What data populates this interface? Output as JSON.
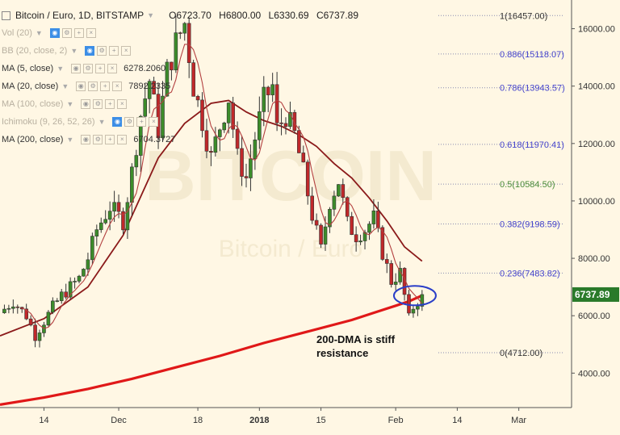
{
  "header": {
    "symbol": "Bitcoin / Euro, 1D, BITSTAMP",
    "ohlc": [
      "O6723.70",
      "H6800.00",
      "L6330.69",
      "C6737.89"
    ]
  },
  "indicators": [
    {
      "name": "Vol (20)",
      "value": "",
      "dim": true,
      "blue": true
    },
    {
      "name": "BB (20, close, 2)",
      "value": "",
      "dim": true,
      "blue": true
    },
    {
      "name": "MA (5, close)",
      "value": "6278.2060",
      "dim": false,
      "blue": false
    },
    {
      "name": "MA (20, close)",
      "value": "7892.2335",
      "dim": false,
      "blue": false
    },
    {
      "name": "MA (100, close)",
      "value": "",
      "dim": true,
      "blue": false
    },
    {
      "name": "Ichimoku (9, 26, 52, 26)",
      "value": "",
      "dim": true,
      "blue": true
    },
    {
      "name": "MA (200, close)",
      "value": "6704.3727",
      "dim": false,
      "blue": false
    }
  ],
  "watermark": {
    "line1": "BITCOIN",
    "line2": "Bitcoin / Euro"
  },
  "annotation": {
    "line1": "200-DMA is stiff",
    "line2": "resistance"
  },
  "colors": {
    "up": "#3c8c2a",
    "down": "#c0282a",
    "ma5": "#b34040",
    "ma20": "#8b1a1a",
    "ma200": "#e01818",
    "fib": "#4444cc",
    "fib_mid": "#4a8c3a",
    "ellipse": "#2a3ec8",
    "price_tag": "#2a7a2a"
  },
  "chart_data": {
    "type": "candlestick",
    "title": "Bitcoin / Euro, 1D, BITSTAMP",
    "ylim": [
      2800,
      17000
    ],
    "y_ticks": [
      4000,
      6000,
      8000,
      10000,
      12000,
      14000,
      16000
    ],
    "y_tick_labels": [
      "4000.00",
      "6000.00",
      "8000.00",
      "10000.00",
      "12000.00",
      "14000.00",
      "16000.00"
    ],
    "x_range_days": [
      0,
      130
    ],
    "x_ticks": [
      {
        "day": 10,
        "label": "14"
      },
      {
        "day": 27,
        "label": "Dec"
      },
      {
        "day": 45,
        "label": "18"
      },
      {
        "day": 59,
        "label": "2018",
        "bold": true
      },
      {
        "day": 73,
        "label": "15"
      },
      {
        "day": 90,
        "label": "Feb"
      },
      {
        "day": 104,
        "label": "14"
      },
      {
        "day": 118,
        "label": "Mar"
      }
    ],
    "last_price": 6737.89,
    "last_price_label": "6737.89",
    "fibonacci": [
      {
        "level": "1",
        "value": 16457.0,
        "label": "1(16457.00)"
      },
      {
        "level": "0.886",
        "value": 15118.07,
        "label": "0.886(15118.07)"
      },
      {
        "level": "0.786",
        "value": 13943.57,
        "label": "0.786(13943.57)"
      },
      {
        "level": "0.618",
        "value": 11970.41,
        "label": "0.618(11970.41)"
      },
      {
        "level": "0.5",
        "value": 10584.5,
        "label": "0.5(10584.50)"
      },
      {
        "level": "0.382",
        "value": 9198.59,
        "label": "0.382(9198.59)"
      },
      {
        "level": "0.236",
        "value": 7483.82,
        "label": "0.236(7483.82)"
      },
      {
        "level": "0",
        "value": 4712.0,
        "label": "0(4712.00)"
      }
    ],
    "close_path": [
      [
        0,
        6100
      ],
      [
        3,
        6500
      ],
      [
        6,
        6000
      ],
      [
        8,
        5300
      ],
      [
        10,
        5800
      ],
      [
        12,
        6300
      ],
      [
        14,
        6700
      ],
      [
        16,
        7000
      ],
      [
        18,
        7300
      ],
      [
        20,
        8000
      ],
      [
        22,
        9000
      ],
      [
        25,
        9800
      ],
      [
        28,
        9300
      ],
      [
        30,
        11000
      ],
      [
        32,
        13000
      ],
      [
        34,
        14200
      ],
      [
        36,
        12500
      ],
      [
        38,
        14500
      ],
      [
        40,
        15500
      ],
      [
        42,
        16200
      ],
      [
        44,
        14000
      ],
      [
        46,
        12800
      ],
      [
        48,
        11500
      ],
      [
        50,
        12600
      ],
      [
        52,
        13600
      ],
      [
        54,
        11500
      ],
      [
        56,
        10800
      ],
      [
        58,
        12200
      ],
      [
        60,
        13500
      ],
      [
        62,
        14000
      ],
      [
        63,
        12500
      ],
      [
        65,
        13000
      ],
      [
        67,
        12300
      ],
      [
        69,
        11000
      ],
      [
        71,
        9500
      ],
      [
        73,
        8300
      ],
      [
        75,
        10000
      ],
      [
        77,
        10700
      ],
      [
        79,
        9200
      ],
      [
        81,
        8800
      ],
      [
        83,
        9000
      ],
      [
        85,
        9400
      ],
      [
        87,
        8200
      ],
      [
        89,
        7200
      ],
      [
        91,
        7500
      ],
      [
        93,
        5900
      ],
      [
        94,
        6300
      ],
      [
        96,
        6700
      ]
    ],
    "ma20_path": [
      [
        0,
        5300
      ],
      [
        10,
        5900
      ],
      [
        20,
        7000
      ],
      [
        28,
        8800
      ],
      [
        36,
        11500
      ],
      [
        42,
        12700
      ],
      [
        48,
        13400
      ],
      [
        52,
        13500
      ],
      [
        56,
        13100
      ],
      [
        60,
        12800
      ],
      [
        64,
        12600
      ],
      [
        68,
        12300
      ],
      [
        72,
        11900
      ],
      [
        76,
        11300
      ],
      [
        80,
        10800
      ],
      [
        84,
        10100
      ],
      [
        88,
        9300
      ],
      [
        92,
        8400
      ],
      [
        96,
        7900
      ]
    ],
    "ma200_path": [
      [
        0,
        2900
      ],
      [
        10,
        3150
      ],
      [
        20,
        3450
      ],
      [
        30,
        3800
      ],
      [
        40,
        4200
      ],
      [
        50,
        4600
      ],
      [
        60,
        5050
      ],
      [
        70,
        5450
      ],
      [
        80,
        5850
      ],
      [
        85,
        6100
      ],
      [
        90,
        6350
      ],
      [
        93,
        6500
      ],
      [
        96,
        6704
      ]
    ],
    "highlight_ellipse": {
      "day_center": 94,
      "price_center": 6700
    }
  }
}
